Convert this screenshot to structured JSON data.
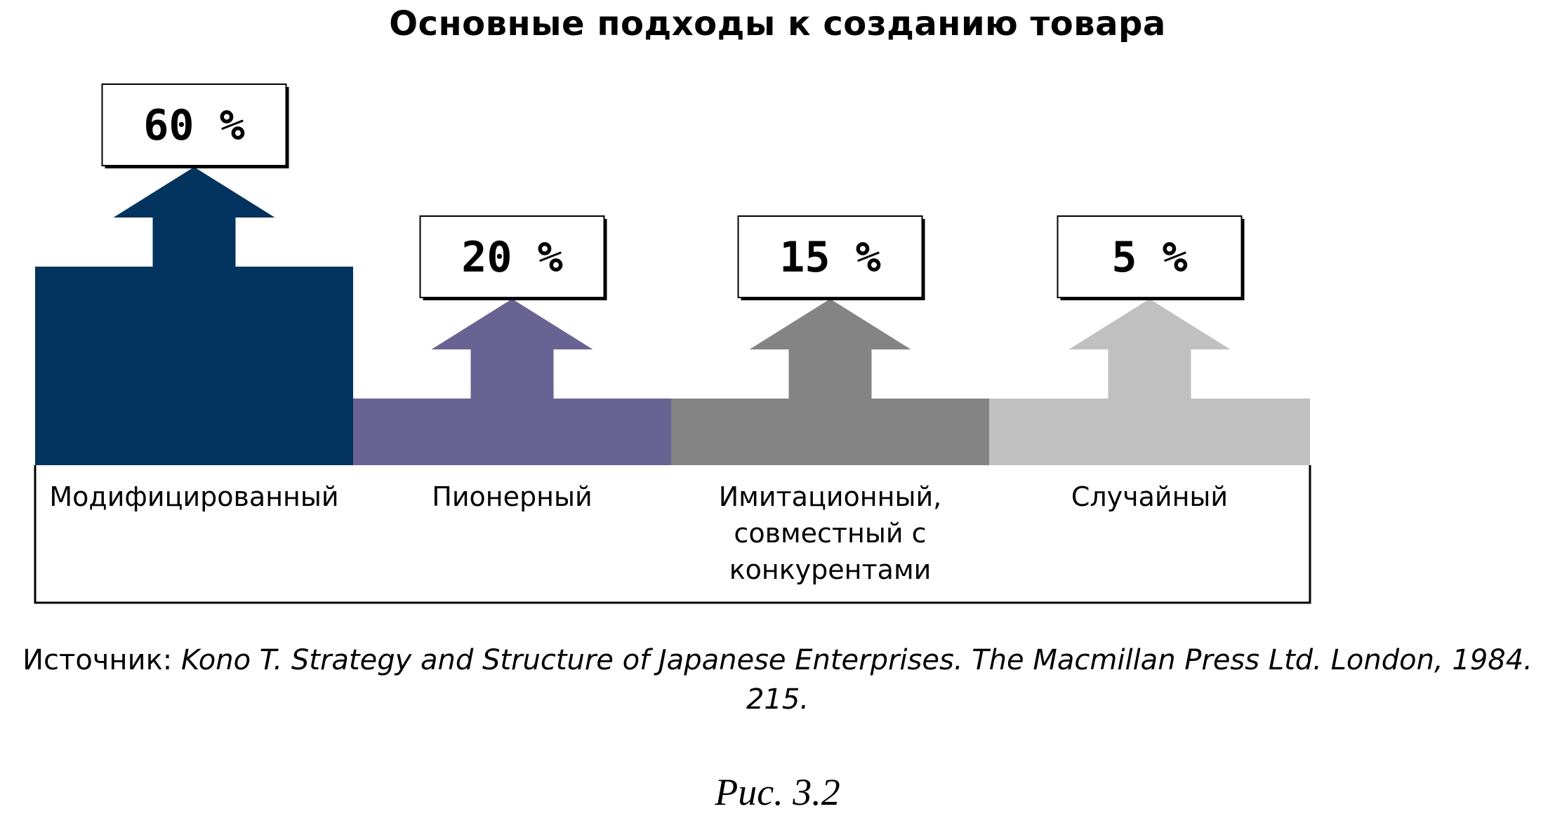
{
  "chart_data": {
    "type": "bar",
    "title": "Основные подходы к созданию товара",
    "categories": [
      [
        "Модифицированный"
      ],
      [
        "Пионерный"
      ],
      [
        "Имитационный,",
        "совместный с",
        "конкурентами"
      ],
      [
        "Случайный"
      ]
    ],
    "values": [
      60,
      20,
      15,
      5
    ],
    "value_labels": [
      "60 %",
      "20 %",
      "15 %",
      "5 %"
    ],
    "colors": [
      "#03335f",
      "#696394",
      "#848484",
      "#c0c0c0"
    ],
    "grid": false,
    "legend": "none"
  },
  "source": {
    "prefix": "Источник: ",
    "text": "Kono T. Strategy and Structure of Japanese Enterprises. The Macmillan Press Ltd. London, 1984. 215."
  },
  "figure_caption": "Рис. 3.2"
}
